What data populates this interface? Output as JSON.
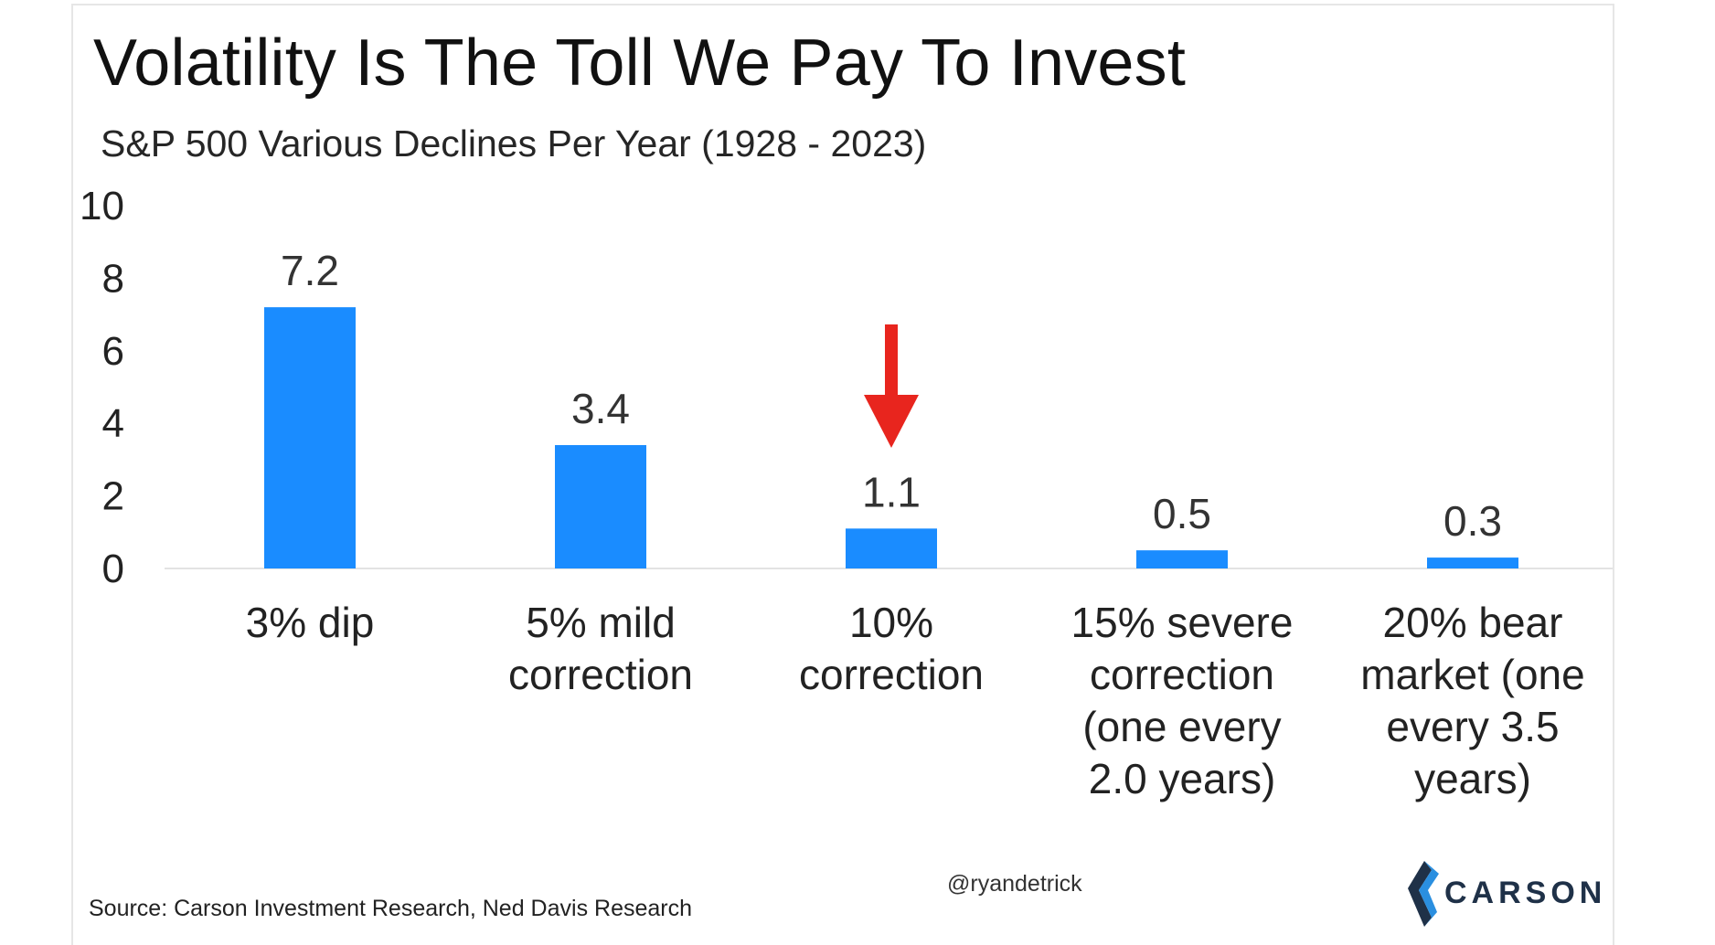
{
  "chart_data": {
    "type": "bar",
    "title": "Volatility Is The Toll We Pay To Invest",
    "subtitle": "S&P 500 Various Declines Per Year (1928 - 2023)",
    "categories": [
      [
        "3% dip"
      ],
      [
        "5% mild",
        "correction"
      ],
      [
        "10%",
        "correction"
      ],
      [
        "15% severe",
        "correction",
        "(one every",
        "2.0 years)"
      ],
      [
        "20% bear",
        "market (one",
        "every 3.5",
        "years)"
      ]
    ],
    "values": [
      7.2,
      3.4,
      1.1,
      0.5,
      0.3
    ],
    "value_labels": [
      "7.2",
      "3.4",
      "1.1",
      "0.5",
      "0.3"
    ],
    "ylim": [
      0,
      10
    ],
    "yticks": [
      "0",
      "2",
      "4",
      "6",
      "8",
      "10"
    ],
    "grid": false,
    "bar_color": "#1a8cff",
    "annotation": {
      "type": "arrow",
      "target_category_index": 2,
      "color": "#e8251e"
    }
  },
  "footer": {
    "source": "Source: Carson Investment Research, Ned Davis Research",
    "handle": "@ryandetrick",
    "logo_text": "CARSON"
  },
  "colors": {
    "logo_dark": "#1f3148",
    "logo_light": "#2a8fe0"
  }
}
